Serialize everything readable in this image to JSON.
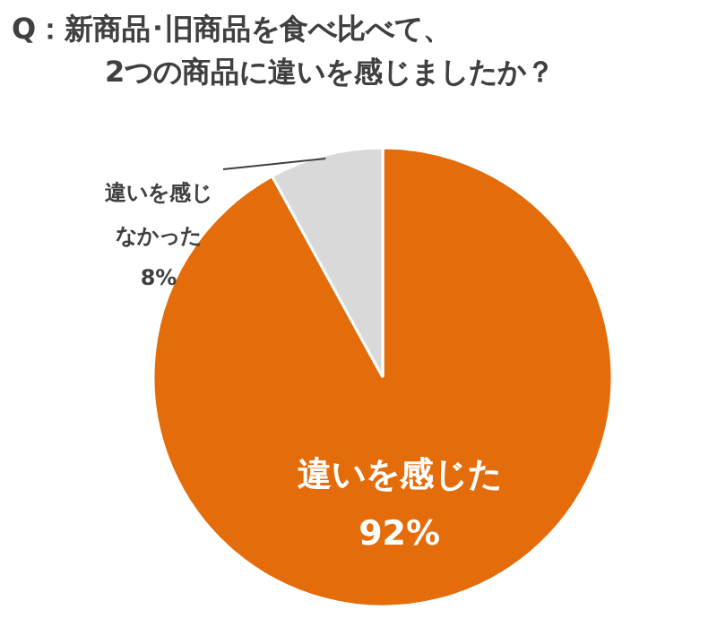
{
  "chart_data": {
    "type": "pie",
    "title": "Q：新商品･旧商品を食べ比べて、\n2つの商品に違いを感じましたか？",
    "categories": [
      "違いを感じた",
      "違いを感じなかった"
    ],
    "values": [
      92,
      8
    ],
    "value_labels": [
      "92%",
      "8%"
    ],
    "colors": [
      "#e46c0a",
      "#d9d9d9"
    ]
  }
}
